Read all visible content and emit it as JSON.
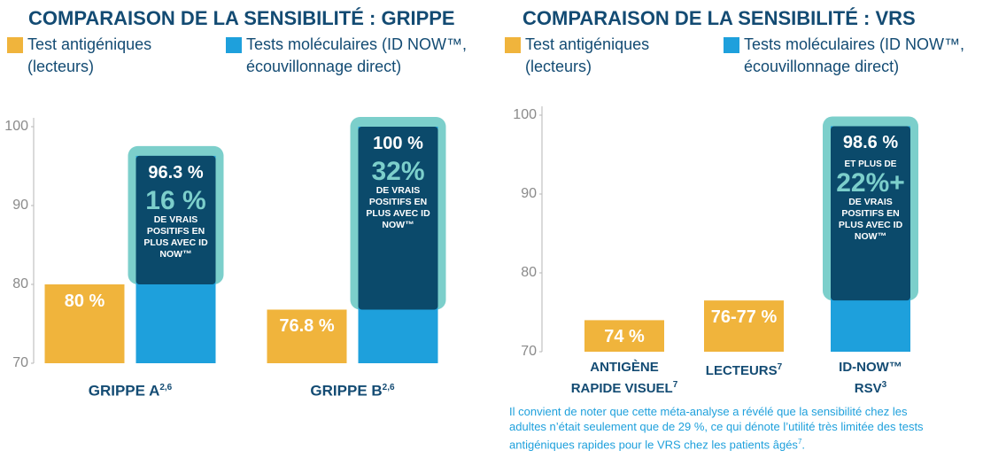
{
  "chart_data": [
    {
      "type": "bar",
      "title": "COMPARAISON DE LA SENSIBILITÉ : GRIPPE",
      "categories": [
        "GRIPPE A",
        "GRIPPE B"
      ],
      "category_notes": [
        "2,6",
        "2,6"
      ],
      "series": [
        {
          "name": "Test antigéniques (lecteurs)",
          "color": "#f0b43c",
          "values": [
            80,
            76.8
          ],
          "value_labels": [
            "80 %",
            "76.8 %"
          ]
        },
        {
          "name": "Tests moléculaires (ID NOW™, écouvillonnage direct)",
          "color": "#1ea0dc",
          "values": [
            96.3,
            100
          ],
          "value_labels": [
            "96.3 %",
            "100 %"
          ]
        }
      ],
      "gain_color": "#0b4a6b",
      "frame_color": "#7ccfcb",
      "annotations": [
        {
          "headline": "16 %",
          "text": "DE VRAIS POSITIFS EN PLUS AVEC ID NOW™"
        },
        {
          "headline": "32%",
          "text": "DE VRAIS POSITIFS EN PLUS AVEC ID NOW™"
        }
      ],
      "ylim": [
        70,
        100
      ],
      "yticks": [
        70,
        80,
        90,
        100
      ]
    },
    {
      "type": "bar",
      "title": "COMPARAISON DE LA SENSIBILITÉ : VRS",
      "categories": [
        "ANTIGÈNE\nRAPIDE VISUEL",
        "LECTEURS",
        "ID-NOW™\nRSV"
      ],
      "category_notes": [
        "7",
        "7",
        "3"
      ],
      "series": [
        {
          "name": "Test antigéniques (lecteurs)",
          "color": "#f0b43c",
          "values": [
            74,
            76.5,
            null
          ],
          "value_labels": [
            "74 %",
            "76-77 %",
            null
          ]
        },
        {
          "name": "Tests moléculaires (ID NOW™, écouvillonnage direct)",
          "color": "#1ea0dc",
          "values": [
            null,
            null,
            98.6
          ],
          "value_labels": [
            null,
            null,
            "98.6 %"
          ]
        }
      ],
      "gain_color": "#0b4a6b",
      "frame_color": "#7ccfcb",
      "annotations": [
        null,
        null,
        {
          "prefix": "ET PLUS DE",
          "headline": "22%+",
          "text": "DE VRAIS POSITIFS EN PLUS AVEC ID NOW™"
        }
      ],
      "ylim": [
        70,
        100
      ],
      "yticks": [
        70,
        80,
        90,
        100
      ],
      "footnote": "Il convient de noter que cette méta-analyse a révélé que la sensibilité chez les adultes n’était seulement que de 29 %, ce qui dénote l’utilité très limitée des tests antigéniques rapides pour le VRS chez les patients âgés",
      "footnote_ref": "7",
      "footnote_end": "."
    }
  ]
}
